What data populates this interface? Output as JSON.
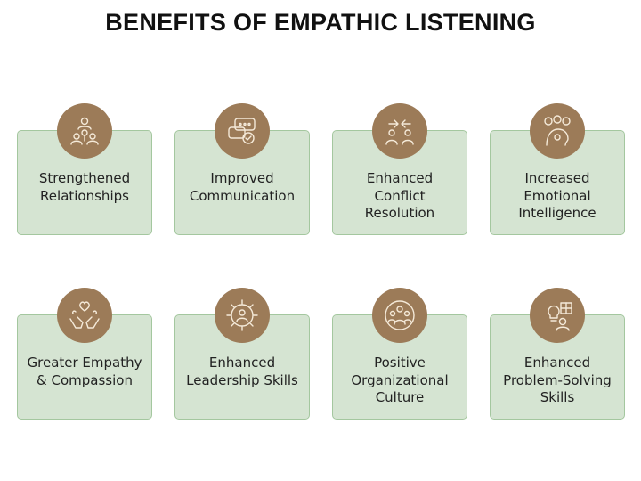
{
  "title": "BENEFITS OF EMPATHIC LISTENING",
  "colors": {
    "card": "#d5e4d2",
    "card_border": "#a4c79f",
    "icon_circle": "#9c7b58",
    "icon_line": "#f5ead9"
  },
  "benefits": [
    {
      "label": "Strengthened\nRelationships",
      "icon": "people-network-heart-icon"
    },
    {
      "label": "Improved\nCommunication",
      "icon": "chat-bubbles-check-icon"
    },
    {
      "label": "Enhanced\nConflict\nResolution",
      "icon": "people-arrows-icon"
    },
    {
      "label": "Increased\nEmotional\nIntelligence",
      "icon": "head-emotions-icon"
    },
    {
      "label": "Greater Empathy\n& Compassion",
      "icon": "hands-hearts-icon"
    },
    {
      "label": "Enhanced\nLeadership Skills",
      "icon": "leader-gear-icon"
    },
    {
      "label": "Positive\nOrganizational\nCulture",
      "icon": "team-group-icon"
    },
    {
      "label": "Enhanced\nProblem-Solving\nSkills",
      "icon": "lightbulb-puzzle-icon"
    }
  ]
}
